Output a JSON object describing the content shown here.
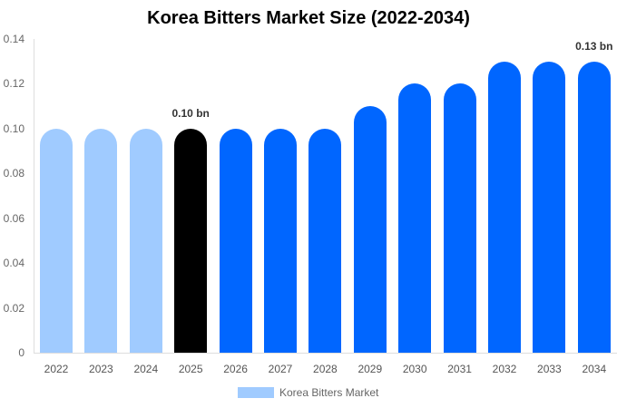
{
  "chart_data": {
    "type": "bar",
    "title": "Korea Bitters Market Size (2022-2034)",
    "xlabel": "",
    "ylabel": "",
    "ylim": [
      0,
      0.14
    ],
    "yticks": [
      "0",
      "0.02",
      "0.04",
      "0.06",
      "0.08",
      "0.10",
      "0.12",
      "0.14"
    ],
    "grid": false,
    "legend_position": "bottom",
    "categories": [
      "2022",
      "2023",
      "2024",
      "2025",
      "2026",
      "2027",
      "2028",
      "2029",
      "2030",
      "2031",
      "2032",
      "2033",
      "2034"
    ],
    "series": [
      {
        "name": "Korea Bitters Market",
        "values": [
          0.1,
          0.1,
          0.1,
          0.1,
          0.1,
          0.1,
          0.1,
          0.11,
          0.12,
          0.12,
          0.13,
          0.13,
          0.13
        ]
      }
    ],
    "bar_colors": [
      "#a0cbff",
      "#a0cbff",
      "#a0cbff",
      "#000000",
      "#0066ff",
      "#0066ff",
      "#0066ff",
      "#0066ff",
      "#0066ff",
      "#0066ff",
      "#0066ff",
      "#0066ff",
      "#0066ff"
    ],
    "annotations": [
      {
        "category": "2025",
        "text": "0.10 bn"
      },
      {
        "category": "2034",
        "text": "0.13 bn"
      }
    ]
  },
  "legend": {
    "label": "Korea Bitters Market",
    "color": "#a0cbff"
  }
}
